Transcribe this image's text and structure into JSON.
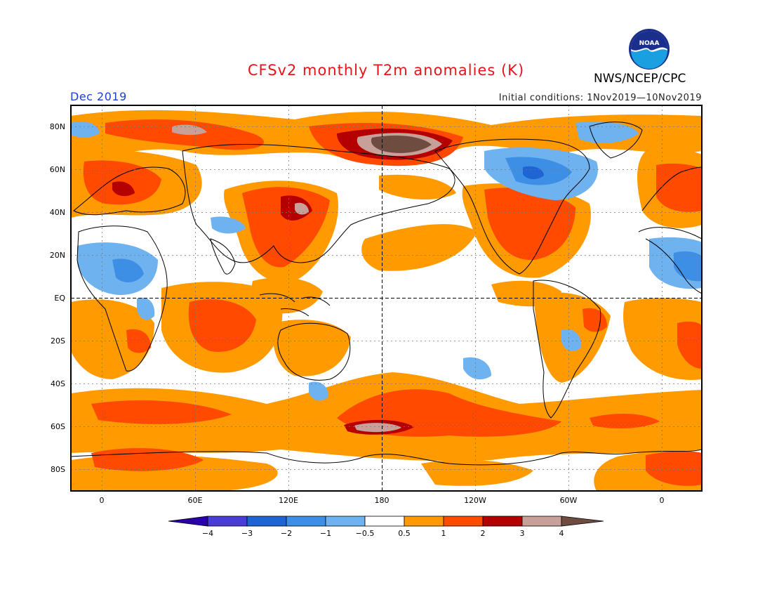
{
  "title": "CFSv2 monthly T2m anomalies (K)",
  "organization": "NWS/NCEP/CPC",
  "logo_text": "NOAA",
  "period_label": "Dec 2019",
  "initial_conditions": "Initial conditions: 1Nov2019—10Nov2019",
  "lat_labels": [
    "80N",
    "60N",
    "40N",
    "20N",
    "EQ",
    "20S",
    "40S",
    "60S",
    "80S"
  ],
  "lon_labels": [
    "0",
    "60E",
    "120E",
    "180",
    "120W",
    "60W",
    "0"
  ],
  "colorbar": {
    "tick_labels": [
      "−4",
      "−3",
      "−2",
      "−1",
      "−0.5",
      "0.5",
      "1",
      "2",
      "3",
      "4"
    ],
    "colors": [
      "#2a00a8",
      "#4a3cd6",
      "#1e64d2",
      "#3d8fe6",
      "#6fb2f0",
      "#ffffff",
      "#ff9a00",
      "#ff4a00",
      "#b40000",
      "#c8a09a",
      "#6e4c40"
    ]
  }
}
